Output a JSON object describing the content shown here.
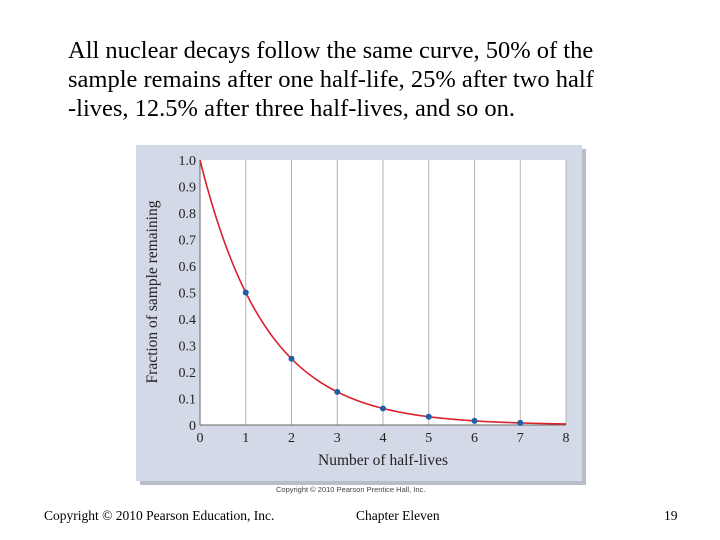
{
  "slide": {
    "caption_lines": [
      "All nuclear decays follow the same curve, 50% of the",
      "sample remains after one half-life, 25% after two half",
      "-lives, 12.5% after three half-lives, and so on."
    ],
    "figure_credit": "Copyright © 2010 Pearson Prentice Hall, Inc.",
    "footer": {
      "copyright": "Copyright © 2010 Pearson Education, Inc.",
      "chapter": "Chapter Eleven",
      "page": "19"
    }
  },
  "chart_data": {
    "type": "line",
    "title": "",
    "xlabel": "Number of half-lives",
    "ylabel": "Fraction of sample remaining",
    "xlim": [
      0,
      8
    ],
    "ylim": [
      0,
      1.0
    ],
    "x_ticks": [
      "0",
      "1",
      "2",
      "3",
      "4",
      "5",
      "6",
      "7",
      "8"
    ],
    "y_ticks": [
      "0",
      "0.1",
      "0.2",
      "0.3",
      "0.4",
      "0.5",
      "0.6",
      "0.7",
      "0.8",
      "0.9",
      "1.0"
    ],
    "grid": true,
    "series": [
      {
        "name": "decay curve",
        "function": "0.5^x",
        "markers": [
          {
            "x": 1,
            "y": 0.5
          },
          {
            "x": 2,
            "y": 0.25
          },
          {
            "x": 3,
            "y": 0.125
          },
          {
            "x": 4,
            "y": 0.0625
          },
          {
            "x": 5,
            "y": 0.03125
          },
          {
            "x": 6,
            "y": 0.015625
          },
          {
            "x": 7,
            "y": 0.0078125
          }
        ]
      }
    ],
    "colors": {
      "curve": "#d9222e",
      "marker": "#1f5fa8",
      "grid": "#b3b3b3",
      "plot_bg": "#ffffff",
      "panel_bg": "#d4d9e8"
    }
  }
}
